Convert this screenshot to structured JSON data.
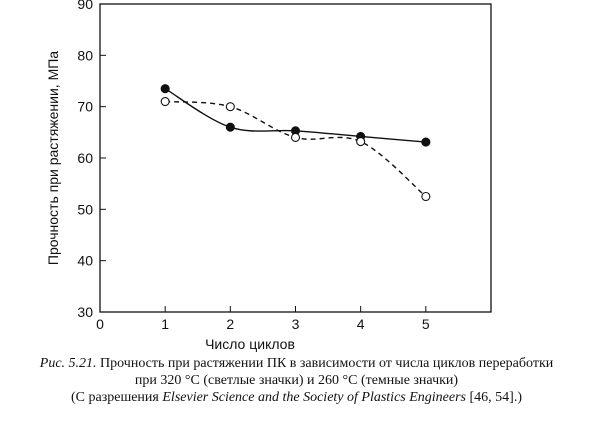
{
  "chart_data": {
    "type": "line",
    "xlabel": "Число циклов",
    "ylabel": "Прочность при растяжении, МПа",
    "xlim": [
      0,
      6
    ],
    "ylim": [
      30,
      90
    ],
    "x_ticks": [
      0,
      1,
      2,
      3,
      4,
      5
    ],
    "y_ticks": [
      30,
      40,
      50,
      60,
      70,
      80,
      90
    ],
    "grid": false,
    "series": [
      {
        "marker": "filled-circle",
        "line_style": "solid",
        "x": [
          1,
          2,
          3,
          4,
          5
        ],
        "y": [
          73.5,
          66,
          65.3,
          64.2,
          63.1
        ],
        "color": "#111111"
      },
      {
        "marker": "open-circle",
        "line_style": "dashed",
        "x": [
          1,
          2,
          3,
          4,
          5
        ],
        "y": [
          71,
          70,
          64,
          63.2,
          52.5
        ],
        "color": "#111111"
      }
    ]
  },
  "caption": {
    "fig_label": "Рис. 5.21.",
    "line1_rest": "Прочность при растяжении ПК в зависимости от числа циклов переработки",
    "line2": "при 320 °С (светлые значки) и 260 °С (темные значки)",
    "line3_start": "(С разрешения",
    "line3_italic": "Elsevier Science and the Society of Plastics Engineers",
    "line3_end": "[46, 54].)"
  }
}
